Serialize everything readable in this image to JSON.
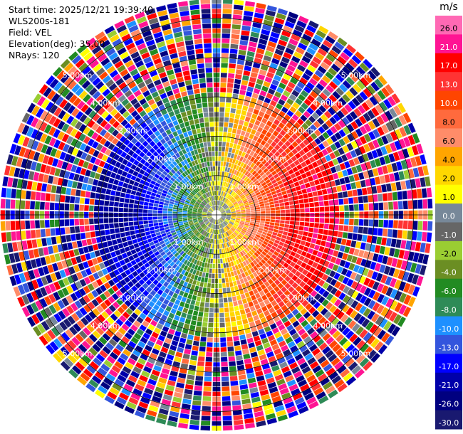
{
  "info": {
    "start_time": "Start time: 2025/12/21 19:39:40",
    "site": "WLS200s-181",
    "field": "Field: VEL",
    "elevation": "Elevation(deg): 35.00",
    "nrays": "NRays: 120"
  },
  "chart_data": {
    "type": "heatmap",
    "subtype": "radar-ppi",
    "field": "VEL",
    "n_rays": 120,
    "range_rings_km": [
      1.0,
      2.0,
      3.0,
      4.0,
      5.0
    ],
    "ring_labels": [
      "1.00km",
      "2.00km",
      "3.00km",
      "4.00km",
      "5.00km"
    ],
    "max_range_km": 5.5,
    "colorbar": {
      "unit": "m/s",
      "ticks": [
        "26.0",
        "21.0",
        "17.0",
        "13.0",
        "10.0",
        "8.0",
        "6.0",
        "4.0",
        "2.0",
        "1.0",
        "0.0",
        "-1.0",
        "-2.0",
        "-4.0",
        "-6.0",
        "-8.0",
        "-10.0",
        "-13.0",
        "-17.0",
        "-21.0",
        "-26.0",
        "-30.0"
      ],
      "colors": [
        "#ff69b4",
        "#ff1493",
        "#ff0000",
        "#ff3333",
        "#ff4500",
        "#ff6a3d",
        "#ff8c69",
        "#ffa500",
        "#ffd700",
        "#ffff00",
        "#778899",
        "#666666",
        "#9acd32",
        "#6b8e23",
        "#228b22",
        "#2e8b57",
        "#1e90ff",
        "#3355dd",
        "#0000ff",
        "#0000aa",
        "#000080",
        "#191970"
      ]
    }
  }
}
